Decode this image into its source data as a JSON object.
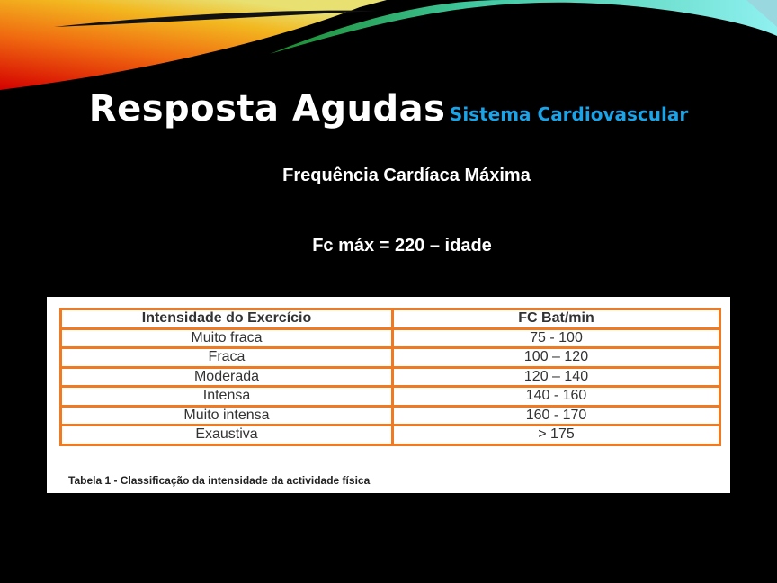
{
  "slide": {
    "title": "Resposta Agudas",
    "title_sub": "Sistema Cardiovascular",
    "subtitle": "Frequência Cardíaca Máxima",
    "formula": "Fc máx = 220 – idade",
    "accent_color": "#1aa3e8"
  },
  "table": {
    "headers": [
      "Intensidade do Exercício",
      "FC Bat/min"
    ],
    "rows": [
      [
        "Muito fraca",
        "75 - 100"
      ],
      [
        "Fraca",
        "100 – 120"
      ],
      [
        "Moderada",
        "120 – 140"
      ],
      [
        "Intensa",
        "140 - 160"
      ],
      [
        "Muito intensa",
        "160 - 170"
      ],
      [
        "Exaustiva",
        "> 175"
      ]
    ],
    "caption": "Tabela 1 - Classificação da intensidade da actividade física",
    "border_color": "#f07a22"
  }
}
